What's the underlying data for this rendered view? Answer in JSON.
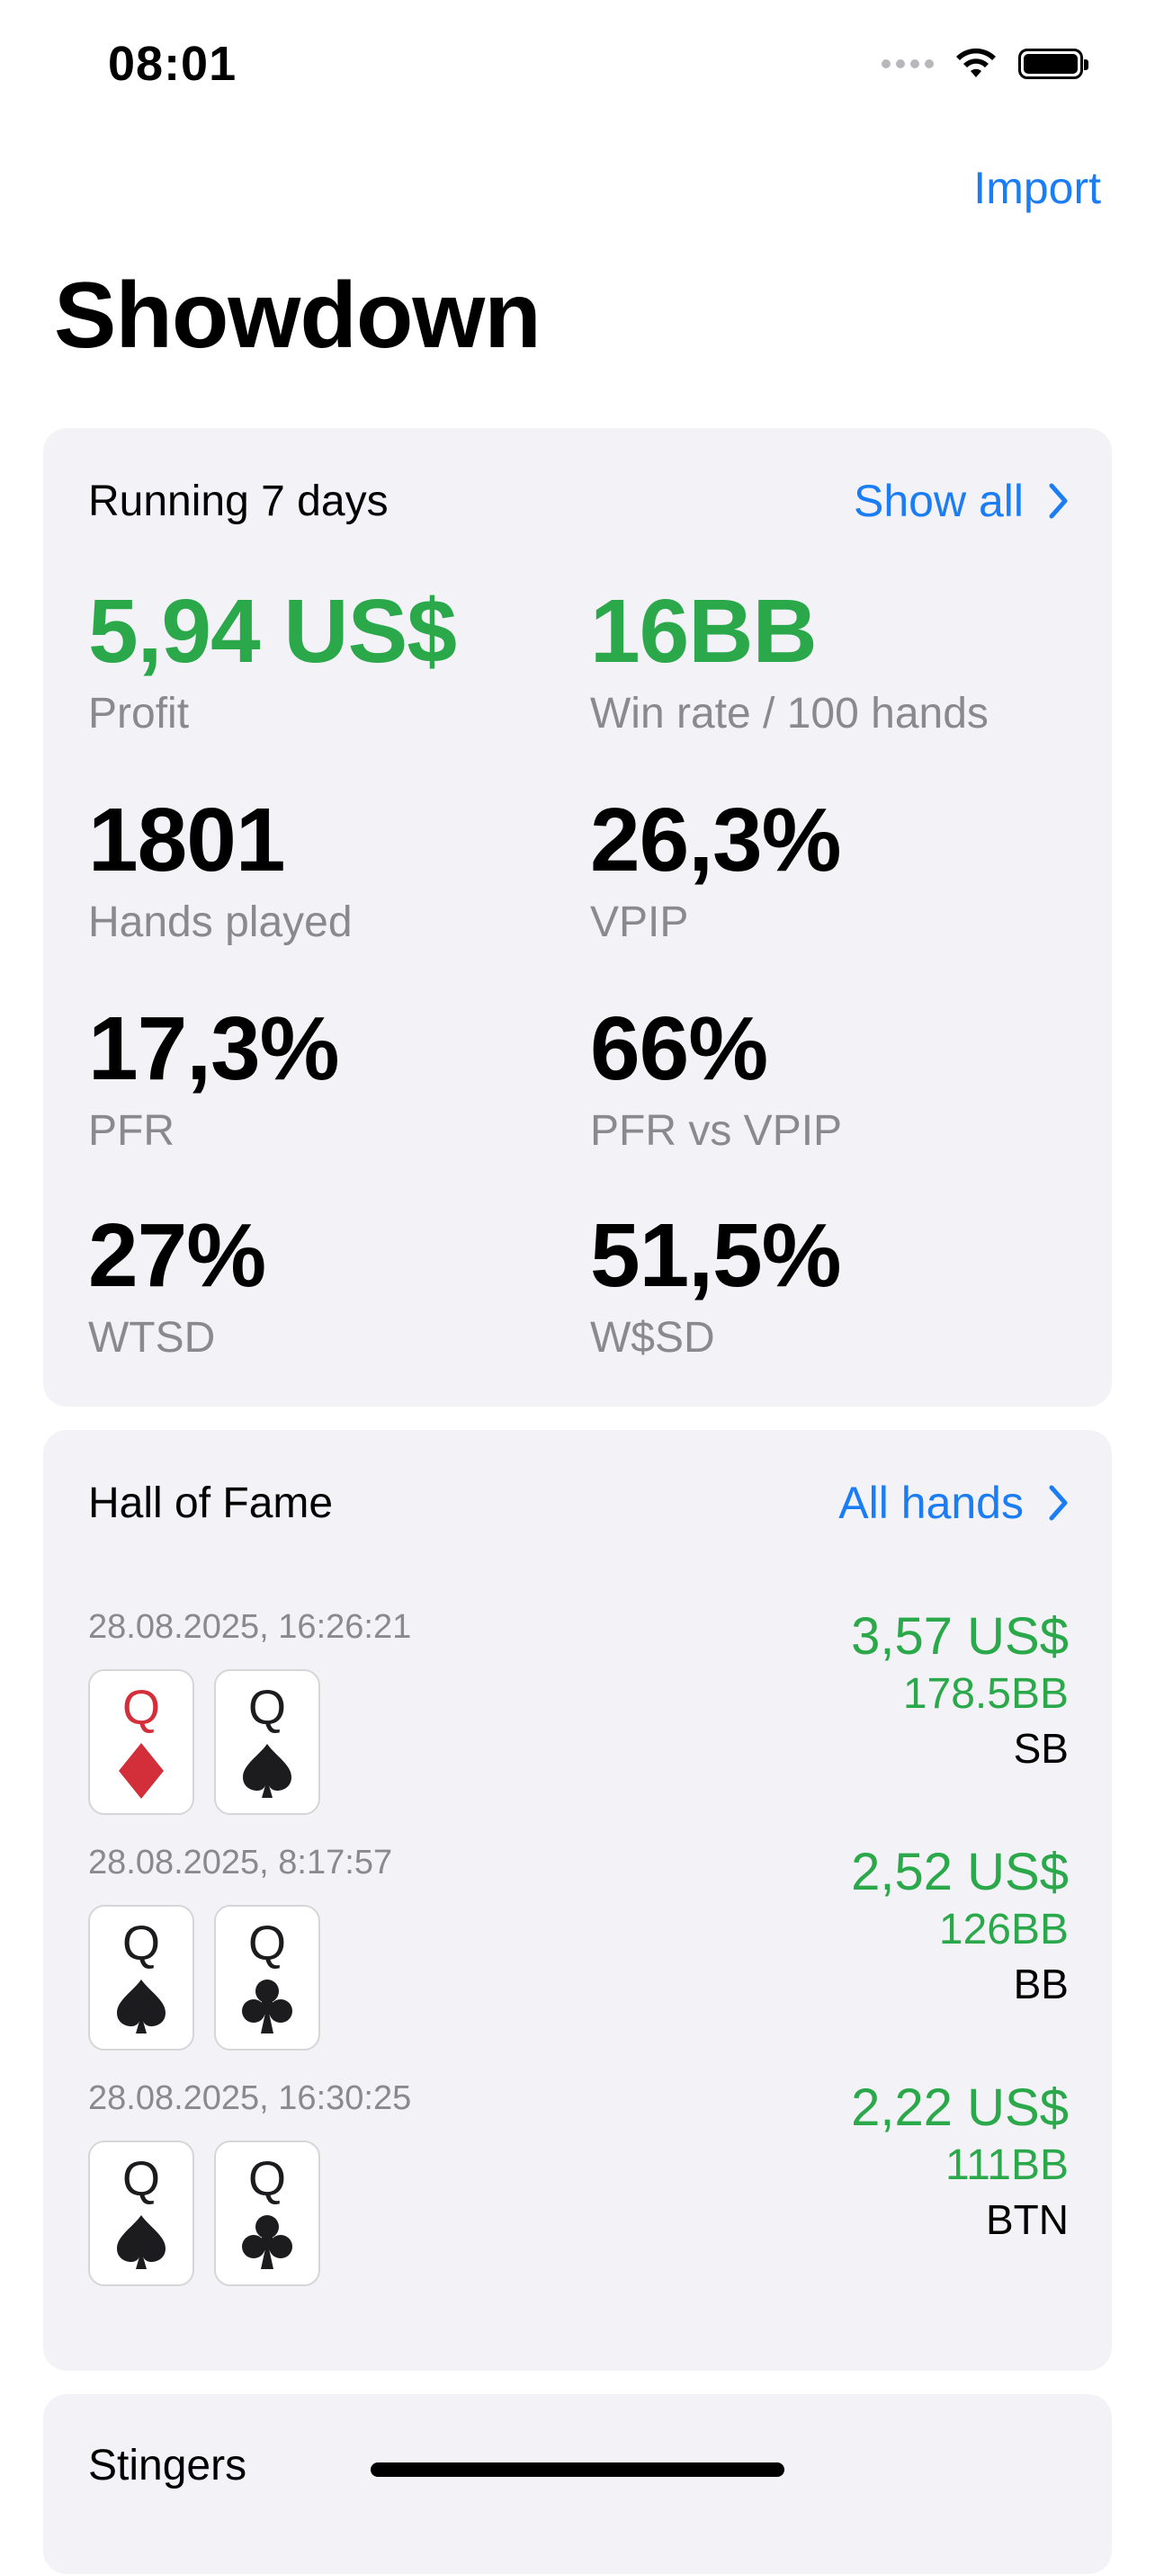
{
  "status_bar": {
    "time": "08:01"
  },
  "nav": {
    "import_label": "Import",
    "title": "Showdown"
  },
  "stats_card": {
    "title": "Running 7 days",
    "link_label": "Show all",
    "stats": [
      {
        "value": "5,94 US$",
        "label": "Profit"
      },
      {
        "value": "16BB",
        "label": "Win rate / 100 hands"
      },
      {
        "value": "1801",
        "label": "Hands played"
      },
      {
        "value": "26,3%",
        "label": "VPIP"
      },
      {
        "value": "17,3%",
        "label": "PFR"
      },
      {
        "value": "66%",
        "label": "PFR vs VPIP"
      },
      {
        "value": "27%",
        "label": "WTSD"
      },
      {
        "value": "51,5%",
        "label": "W$SD"
      }
    ]
  },
  "hall_of_fame": {
    "title": "Hall of Fame",
    "link_label": "All hands",
    "hands": [
      {
        "date": "28.08.2025, 16:26:21",
        "cards": [
          {
            "rank": "Q",
            "suit": "diamond"
          },
          {
            "rank": "Q",
            "suit": "spade"
          }
        ],
        "amount": "3,57 US$",
        "bb": "178.5BB",
        "position": "SB"
      },
      {
        "date": "28.08.2025, 8:17:57",
        "cards": [
          {
            "rank": "Q",
            "suit": "spade"
          },
          {
            "rank": "Q",
            "suit": "club"
          }
        ],
        "amount": "2,52 US$",
        "bb": "126BB",
        "position": "BB"
      },
      {
        "date": "28.08.2025, 16:30:25",
        "cards": [
          {
            "rank": "Q",
            "suit": "spade"
          },
          {
            "rank": "Q",
            "suit": "club"
          }
        ],
        "amount": "2,22 US$",
        "bb": "111BB",
        "position": "BTN"
      }
    ]
  },
  "stingers": {
    "title": "Stingers"
  },
  "colors": {
    "accent": "#1a7df5",
    "profit_green": "#2aa84a",
    "label_gray": "#8a8a8e",
    "card_bg": "#f2f2f7",
    "suit_red": "#d32f3a"
  }
}
